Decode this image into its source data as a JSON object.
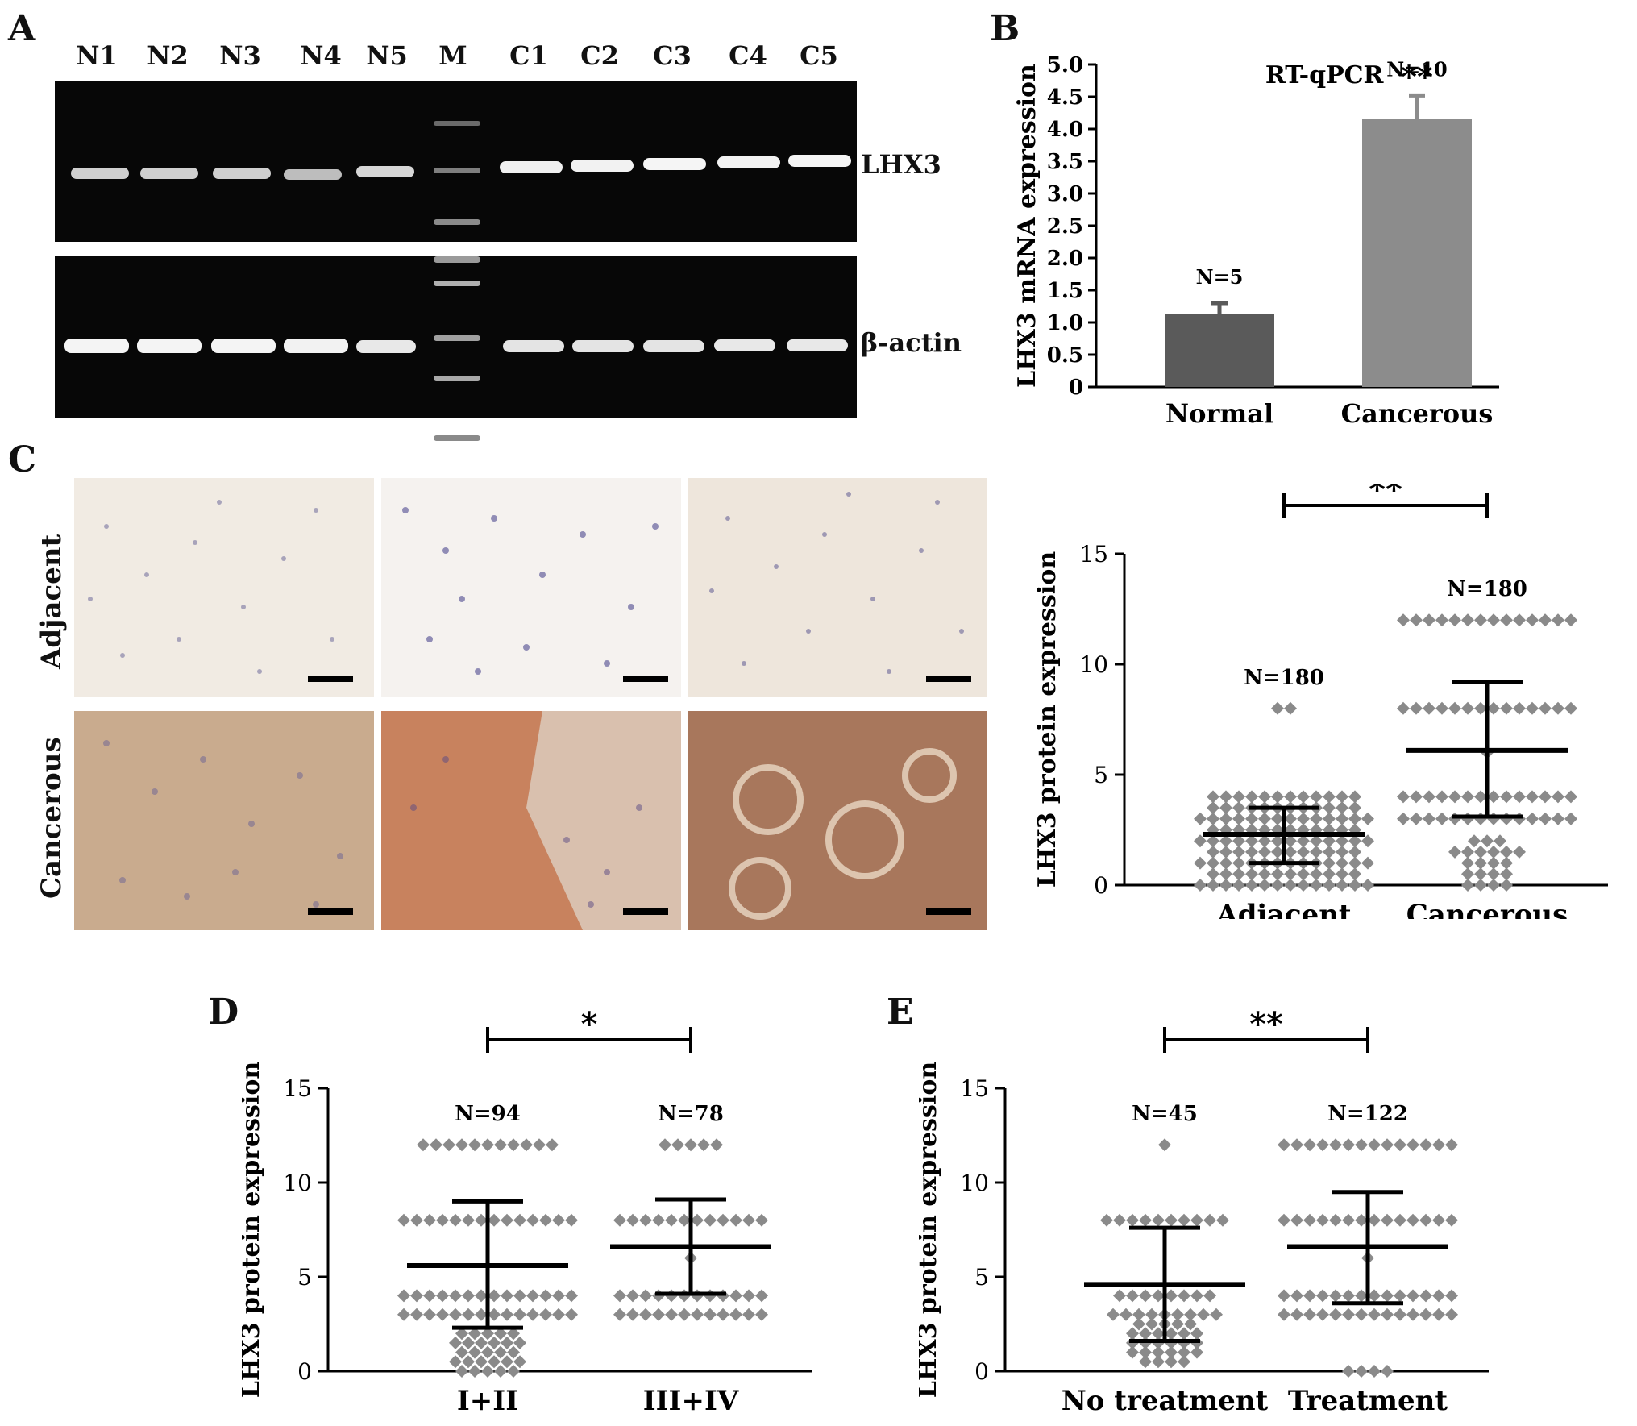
{
  "panels": {
    "A": {
      "letter": "A",
      "lanes": [
        "N1",
        "N2",
        "N3",
        "N4",
        "N5",
        "M",
        "C1",
        "C2",
        "C3",
        "C4",
        "C5"
      ],
      "gel_labels": [
        "LHX3",
        "β-actin"
      ]
    },
    "B": {
      "letter": "B"
    },
    "C": {
      "letter": "C",
      "row_labels": [
        "Adjacent",
        "Cancerous"
      ]
    },
    "D": {
      "letter": "D"
    },
    "E": {
      "letter": "E"
    }
  },
  "chart_data": [
    {
      "id": "B",
      "type": "bar",
      "title": "RT-qPCR",
      "ylabel": "LHX3 mRNA expression",
      "categories": [
        "Normal",
        "Cancerous"
      ],
      "values": [
        1.13,
        4.15
      ],
      "errors": [
        0.17,
        0.37
      ],
      "n_labels": [
        "N=5",
        "N=10"
      ],
      "significance": [
        "",
        "**"
      ],
      "ylim": [
        0,
        5.0
      ],
      "yticks": [
        "0",
        "0.5",
        "1.0",
        "1.5",
        "2.0",
        "2.5",
        "3.0",
        "3.5",
        "4.0",
        "4.5",
        "5.0"
      ],
      "colors": [
        "#5a5a5a",
        "#8c8c8c"
      ]
    },
    {
      "id": "C",
      "type": "scatter",
      "ylabel": "LHX3 protein expression",
      "categories": [
        "Adjacent",
        "Cancerous"
      ],
      "n_labels": [
        "N=180",
        "N=180"
      ],
      "mean": [
        2.3,
        6.1
      ],
      "sd_low": [
        1.0,
        3.1
      ],
      "sd_high": [
        3.5,
        9.2
      ],
      "significance": "**",
      "ylim": [
        0,
        15
      ],
      "yticks": [
        "0",
        "5",
        "10",
        "15"
      ],
      "levels": [
        {
          "0": 14,
          "0.5": 12,
          "1": 14,
          "1.5": 12,
          "2": 14,
          "2.5": 12,
          "3": 14,
          "3.5": 12,
          "4": 12,
          "8": 2
        },
        {
          "0": 4,
          "0.5": 4,
          "1": 4,
          "1.5": 6,
          "2": 3,
          "3": 14,
          "4": 14,
          "6": 1,
          "8": 14,
          "12": 14
        }
      ],
      "color": "#8a8a8a"
    },
    {
      "id": "D",
      "type": "scatter",
      "ylabel": "LHX3 protein expression",
      "categories": [
        "I+II",
        "III+IV"
      ],
      "n_labels": [
        "N=94",
        "N=78"
      ],
      "mean": [
        5.6,
        6.6
      ],
      "sd_low": [
        2.3,
        4.1
      ],
      "sd_high": [
        9.0,
        9.1
      ],
      "significance": "*",
      "ylim": [
        0,
        15
      ],
      "yticks": [
        "0",
        "5",
        "10",
        "15"
      ],
      "levels": [
        {
          "0": 5,
          "0.5": 6,
          "1": 5,
          "1.5": 6,
          "2": 5,
          "3": 14,
          "4": 14,
          "8": 14,
          "12": 11
        },
        {
          "3": 12,
          "4": 12,
          "6": 1,
          "8": 12,
          "12": 5
        }
      ],
      "color": "#8a8a8a"
    },
    {
      "id": "E",
      "type": "scatter",
      "ylabel": "LHX3 protein expression",
      "categories": [
        "No treatment",
        "Treatment"
      ],
      "n_labels": [
        "N=45",
        "N=122"
      ],
      "mean": [
        4.6,
        6.6
      ],
      "sd_low": [
        1.6,
        3.6
      ],
      "sd_high": [
        7.6,
        9.5
      ],
      "significance": "**",
      "ylim": [
        0,
        15
      ],
      "yticks": [
        "0",
        "5",
        "10",
        "15"
      ],
      "levels": [
        {
          "0.5": 4,
          "1": 6,
          "1.5": 6,
          "2": 6,
          "2.5": 5,
          "3": 9,
          "4": 8,
          "8": 10,
          "12": 1
        },
        {
          "0": 4,
          "3": 14,
          "4": 14,
          "6": 1,
          "8": 14,
          "12": 14
        }
      ],
      "color": "#8a8a8a"
    }
  ]
}
